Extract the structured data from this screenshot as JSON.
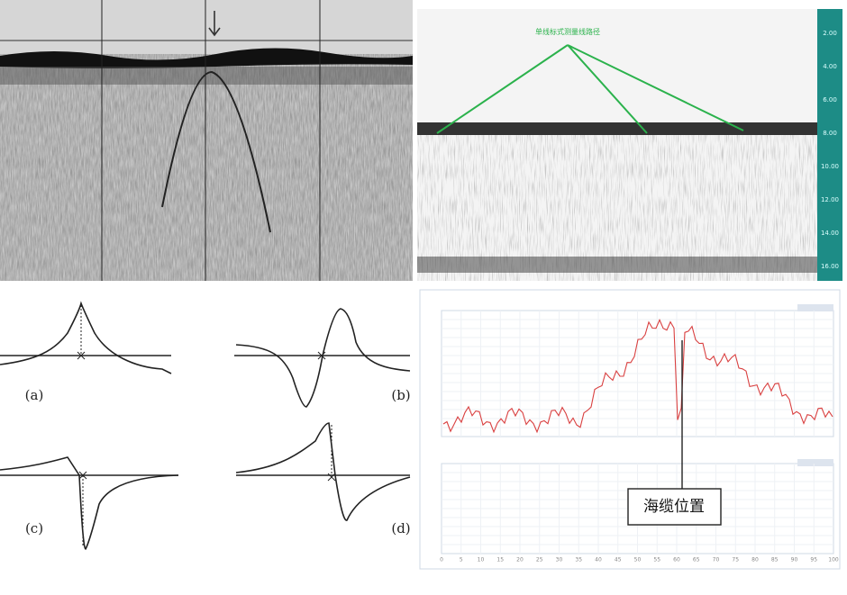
{
  "sonar_right": {
    "annotation": "单线标式测量线路径",
    "depth_scale": [
      "2.00",
      "4.00",
      "6.00",
      "8.00",
      "10.00",
      "12.00",
      "14.00",
      "16.00"
    ]
  },
  "waveforms": {
    "labels": [
      "(a)",
      "(b)",
      "(c)",
      "(d)"
    ]
  },
  "cable_chart": {
    "marker_label": "海缆位置",
    "lower_x_ticks": [
      "0",
      "5",
      "10",
      "15",
      "20",
      "25",
      "30",
      "35",
      "40",
      "45",
      "50",
      "55",
      "60",
      "65",
      "70",
      "75",
      "80",
      "85",
      "90",
      "95",
      "100"
    ]
  }
}
